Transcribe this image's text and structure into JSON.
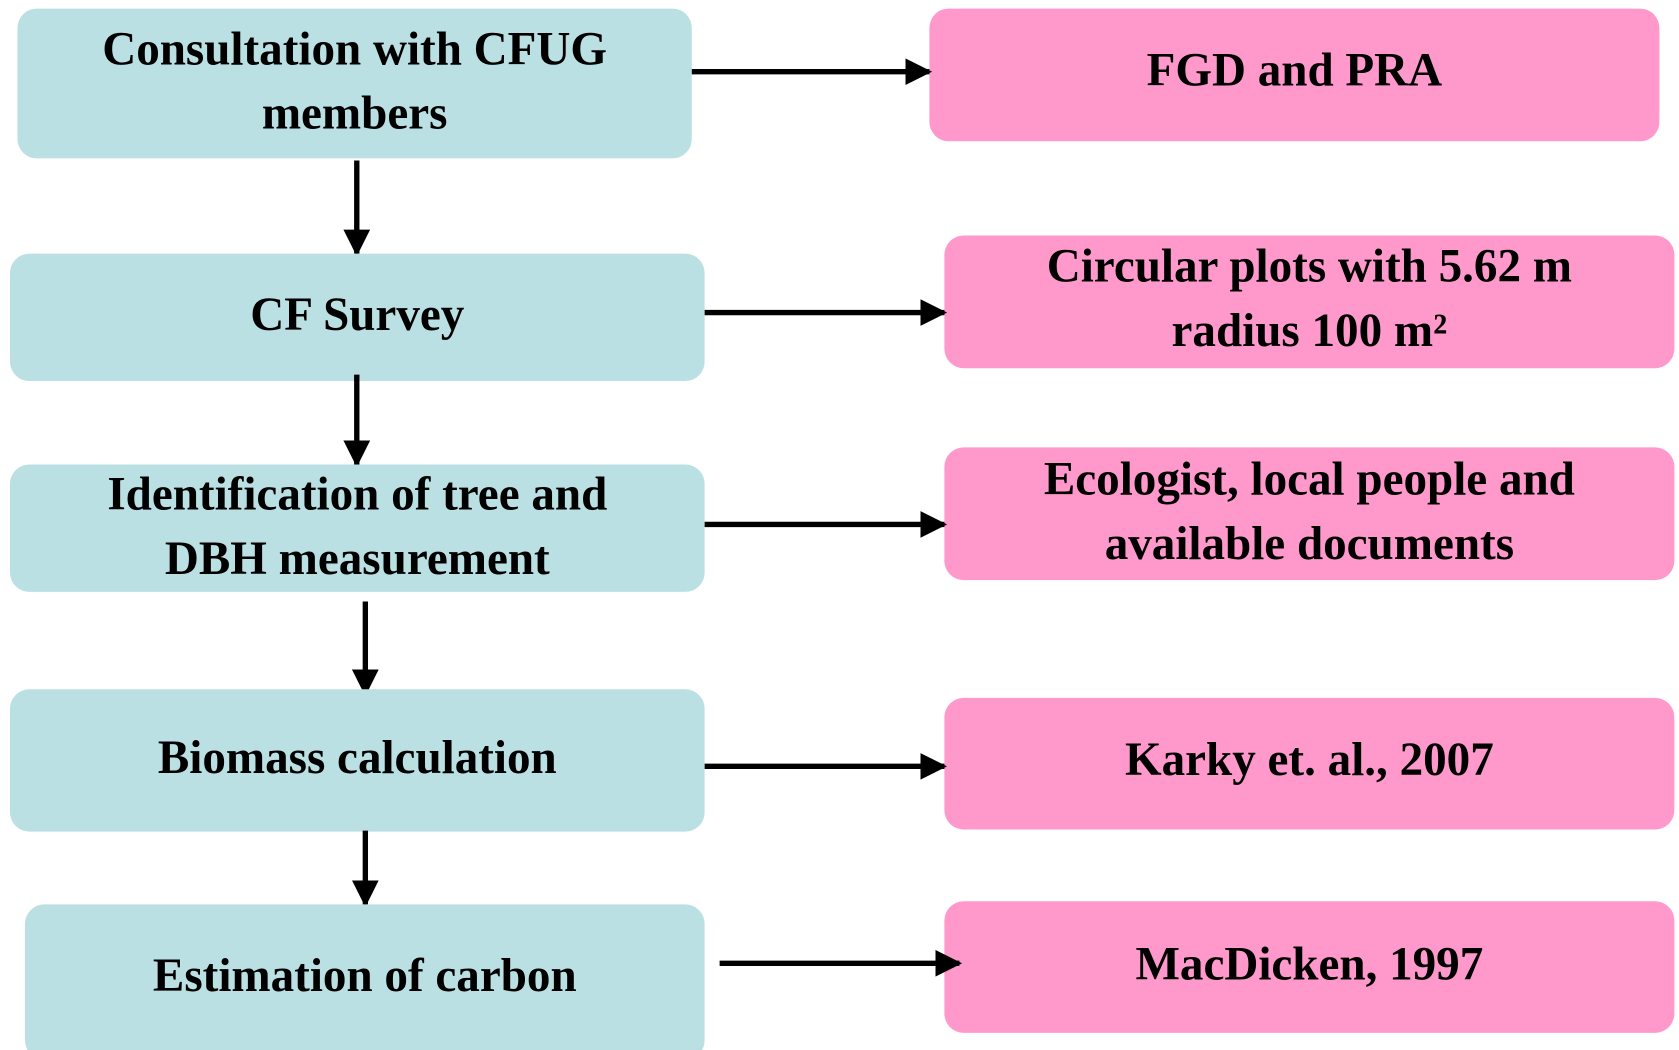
{
  "steps": [
    {
      "label": [
        "Consultation with CFUG",
        "members"
      ],
      "method": [
        "FGD and PRA"
      ]
    },
    {
      "label": [
        "CF Survey"
      ],
      "method": [
        "Circular plots with 5.62 m",
        "radius  100 m²"
      ]
    },
    {
      "label": [
        "Identification of tree and",
        "DBH measurement"
      ],
      "method": [
        "Ecologist, local people and",
        "available documents"
      ]
    },
    {
      "label": [
        "Biomass calculation"
      ],
      "method": [
        "Karky et. al., 2007"
      ]
    },
    {
      "label": [
        "Estimation of carbon"
      ],
      "method": [
        "MacDicken, 1997"
      ]
    }
  ]
}
